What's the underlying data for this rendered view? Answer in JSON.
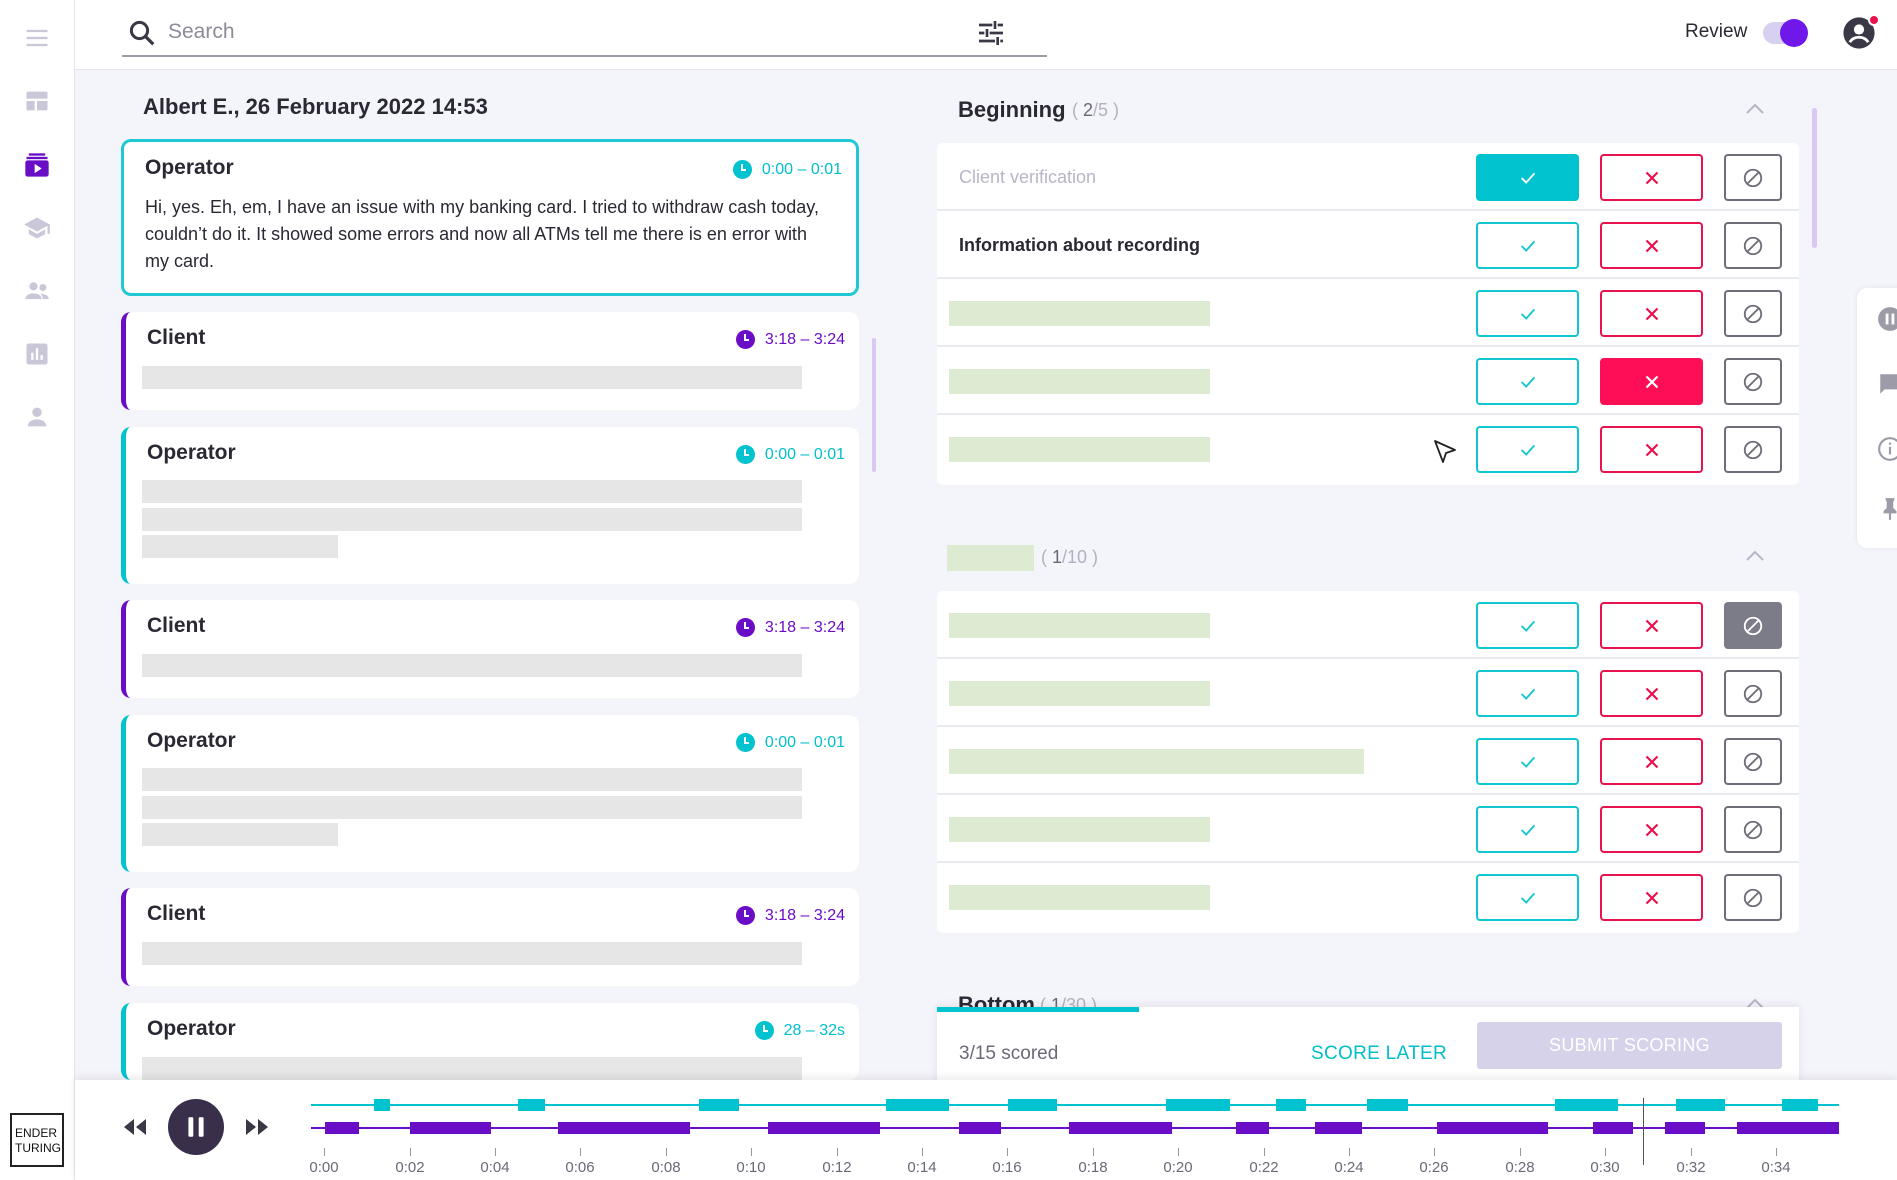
{
  "brand": {
    "line1": "ENDER",
    "line2": "TURING"
  },
  "nav": [
    "menu-icon",
    "dashboard-icon",
    "calls-icon",
    "training-icon",
    "team-icon",
    "reports-icon",
    "profile-icon"
  ],
  "search": {
    "placeholder": "Search",
    "value": ""
  },
  "header": {
    "review_label": "Review",
    "review_on": true
  },
  "call": {
    "title": "Albert E., 26 February 2022 14:53"
  },
  "transcript": [
    {
      "speaker": "Operator",
      "time": "0:00 – 0:01",
      "text": "Hi, yes. Eh, em, I have an issue with my banking card. I tried to withdraw cash today, couldn’t do it. It showed some errors and now all ATMs tell me there is en error with my card."
    },
    {
      "speaker": "Client",
      "time": "3:18 – 3:24"
    },
    {
      "speaker": "Operator",
      "time": "0:00 – 0:01"
    },
    {
      "speaker": "Client",
      "time": "3:18 – 3:24"
    },
    {
      "speaker": "Operator",
      "time": "0:00 – 0:01"
    },
    {
      "speaker": "Client",
      "time": "3:18 – 3:24"
    },
    {
      "speaker": "Operator",
      "time": "28 – 32s"
    }
  ],
  "sections": [
    {
      "title": "Beginning",
      "count_done": "2",
      "count_total": "/5",
      "rows": [
        {
          "label": "Client verification",
          "state": "yes"
        },
        {
          "label": "Information about recording",
          "state": "none"
        },
        {
          "label": "",
          "state": "none"
        },
        {
          "label": "",
          "state": "no"
        },
        {
          "label": "",
          "state": "none"
        }
      ]
    },
    {
      "title": "",
      "count_done": "1",
      "count_total": "/10",
      "rows": [
        {
          "label": "",
          "state": "na"
        },
        {
          "label": "",
          "state": "none"
        },
        {
          "label": "",
          "state": "none"
        },
        {
          "label": "",
          "state": "none"
        },
        {
          "label": "",
          "state": "none"
        }
      ]
    },
    {
      "title": "Bottom",
      "count_done": "1",
      "count_total": "/30"
    }
  ],
  "footer": {
    "scored": "3/15 scored",
    "score_later": "SCORE LATER",
    "submit": "SUBMIT SCORING",
    "progress": 0.2
  },
  "player": {
    "time_labels": [
      "0:00",
      "0:02",
      "0:04",
      "0:06",
      "0:08",
      "0:10",
      "0:12",
      "0:14",
      "0:16",
      "0:18",
      "0:20",
      "0:22",
      "0:24",
      "0:26",
      "0:28",
      "0:30",
      "0:32",
      "0:34"
    ],
    "colors": {
      "operator": "#00c3cf",
      "client": "#6a0dc7"
    }
  }
}
